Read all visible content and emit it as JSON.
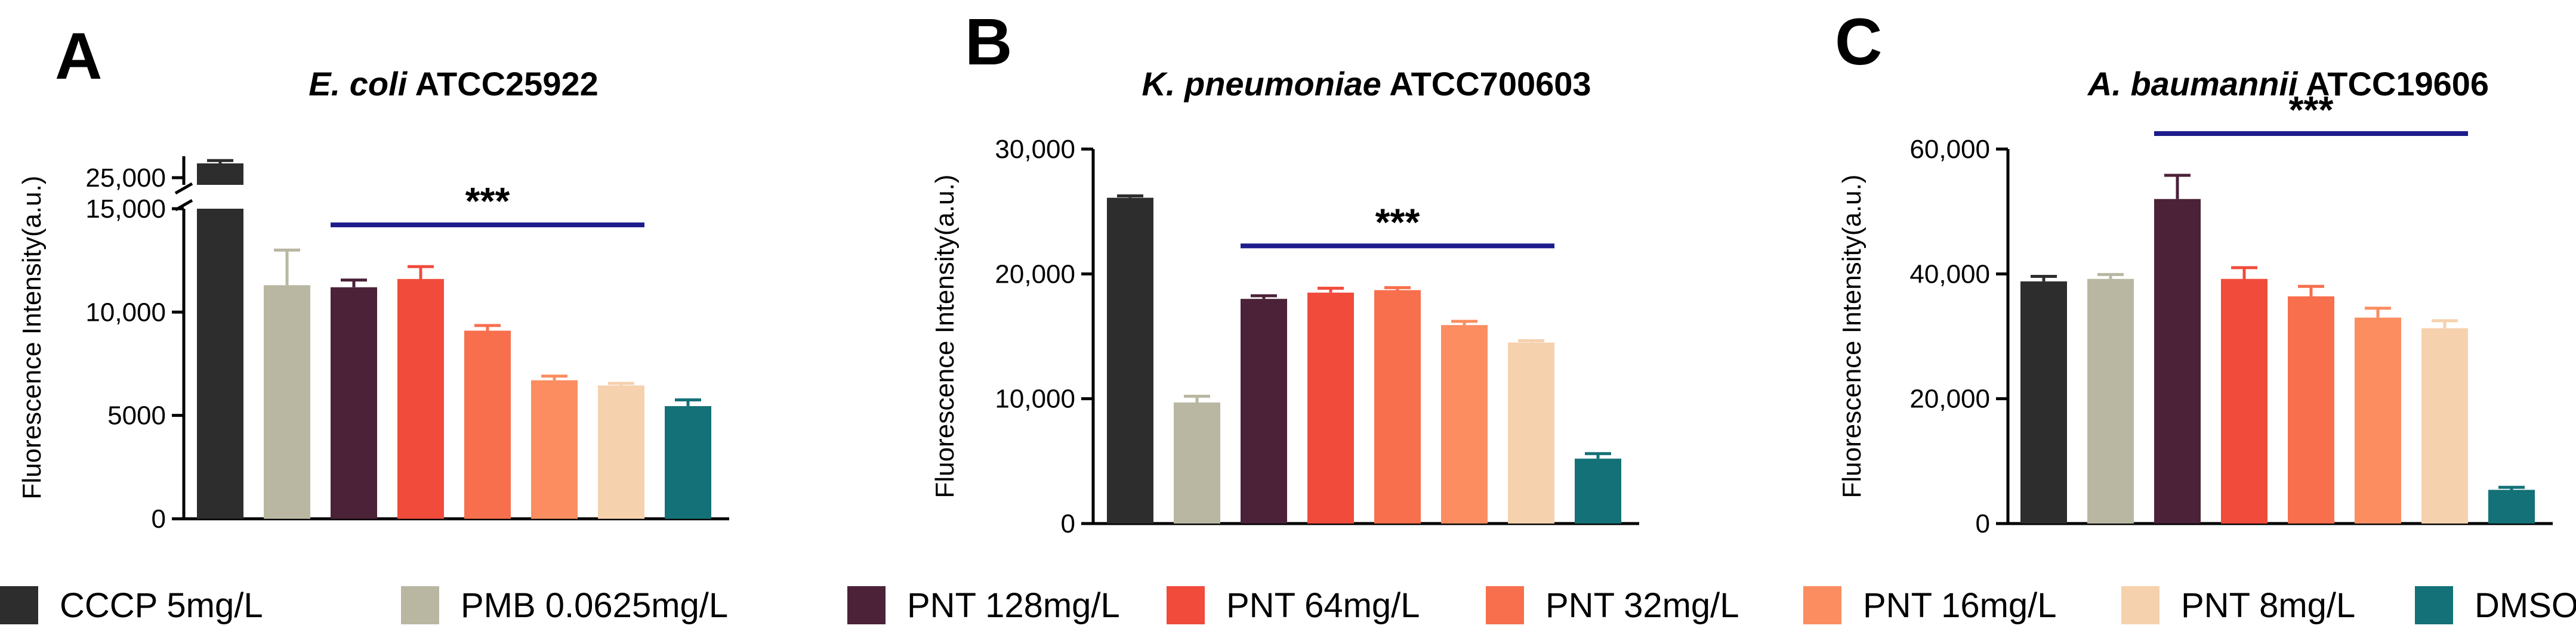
{
  "chart_data": [
    {
      "type": "bar",
      "panel": "A",
      "title_italic": "E. coli",
      "title_rest": " ATCC25922",
      "ylabel": "Fluorescence Intensity(a.u.)",
      "ylim": [
        0,
        15000
      ],
      "yticks": [
        0,
        5000,
        10000,
        15000
      ],
      "ytick_labels": [
        "0",
        "5000",
        "10,000",
        "15,000"
      ],
      "axis_break": true,
      "upper_segment": {
        "ylim": [
          24500,
          26500
        ],
        "yticks": [
          25000
        ],
        "ytick_labels": [
          "25,000"
        ]
      },
      "categories": [
        "CCCP 5mg/L",
        "PMB 0.0625mg/L",
        "PNT 128mg/L",
        "PNT 64mg/L",
        "PNT 32mg/L",
        "PNT 16mg/L",
        "PNT 8mg/L",
        "DMSO"
      ],
      "values": [
        26000,
        11300,
        11200,
        11600,
        9100,
        6700,
        6450,
        5450
      ],
      "errors": [
        200,
        1700,
        350,
        600,
        250,
        200,
        100,
        300
      ],
      "significance": {
        "label": "***",
        "from": 2,
        "to": 6
      }
    },
    {
      "type": "bar",
      "panel": "B",
      "title_italic": "K. pneumoniae",
      "title_rest": " ATCC700603",
      "ylabel": "Fluorescence Intensity(a.u.)",
      "ylim": [
        0,
        30000
      ],
      "yticks": [
        0,
        10000,
        20000,
        30000
      ],
      "ytick_labels": [
        "0",
        "10,000",
        "20,000",
        "30,000"
      ],
      "categories": [
        "CCCP 5mg/L",
        "PMB 0.0625mg/L",
        "PNT 128mg/L",
        "PNT 64mg/L",
        "PNT 32mg/L",
        "PNT 16mg/L",
        "PNT 8mg/L",
        "DMSO"
      ],
      "values": [
        26100,
        9700,
        18000,
        18500,
        18700,
        15900,
        14500,
        5200
      ],
      "errors": [
        150,
        500,
        250,
        350,
        200,
        300,
        150,
        400
      ],
      "significance": {
        "label": "***",
        "from": 2,
        "to": 6
      }
    },
    {
      "type": "bar",
      "panel": "C",
      "title_italic": "A. baumannii",
      "title_rest": " ATCC19606",
      "ylabel": "Fluorescence Intensity(a.u.)",
      "ylim": [
        0,
        60000
      ],
      "yticks": [
        0,
        20000,
        40000,
        60000
      ],
      "ytick_labels": [
        "0",
        "20,000",
        "40,000",
        "60,000"
      ],
      "categories": [
        "CCCP 5mg/L",
        "PMB 0.0625mg/L",
        "PNT 128mg/L",
        "PNT 64mg/L",
        "PNT 32mg/L",
        "PNT 16mg/L",
        "PNT 8mg/L",
        "DMSO"
      ],
      "values": [
        38800,
        39200,
        52000,
        39200,
        36400,
        33000,
        31300,
        5400
      ],
      "errors": [
        800,
        700,
        3800,
        1800,
        1600,
        1500,
        1200,
        400
      ],
      "significance": {
        "label": "***",
        "from": 2,
        "to": 6
      }
    }
  ],
  "legend": [
    {
      "label": "CCCP 5mg/L",
      "color": "#2d2d2d"
    },
    {
      "label": "PMB 0.0625mg/L",
      "color": "#b9b7a2"
    },
    {
      "label": "PNT 128mg/L",
      "color": "#4b2238"
    },
    {
      "label": "PNT 64mg/L",
      "color": "#f04b3b"
    },
    {
      "label": "PNT 32mg/L",
      "color": "#f76f4c"
    },
    {
      "label": "PNT 16mg/L",
      "color": "#fb8d60"
    },
    {
      "label": "PNT 8mg/L",
      "color": "#f6d1ad"
    },
    {
      "label": "DMSO",
      "color": "#137177"
    }
  ],
  "significance_color": "#1c1c8c"
}
